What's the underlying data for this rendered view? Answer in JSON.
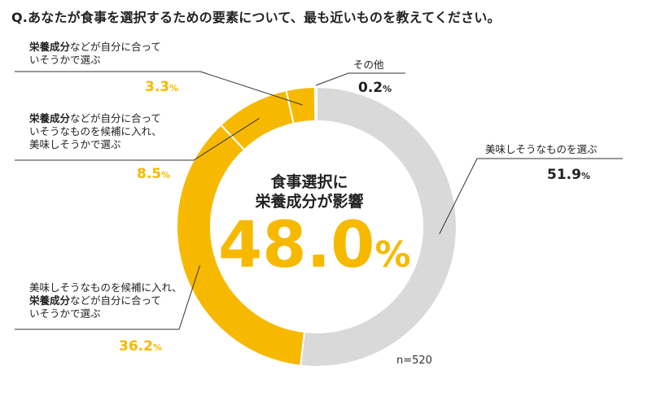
{
  "title": "Q.あなたが食事を選択するための要素について、最も近いものを教えてください。",
  "colors": {
    "gray": "#d9d9d9",
    "yellow": "#f7b900",
    "pct_yellow": "#f5b800"
  },
  "chart_data": {
    "type": "pie",
    "donut": true,
    "sample": "n=520",
    "center": {
      "line1": "食事選択に",
      "line2": "栄養成分が影響",
      "value": "48.0",
      "unit": "%"
    },
    "slices": [
      {
        "id": "tasty",
        "value": 51.9,
        "value_text": "51.9",
        "unit": "%",
        "color": "#d9d9d9",
        "label_lines": [
          "美味しそうなものを選ぶ"
        ]
      },
      {
        "id": "tasty-then-nutrition",
        "value": 36.2,
        "value_text": "36.2",
        "unit": "%",
        "color": "#f7b900",
        "label_lines": [
          "美味しそうなものを候補に入れ、",
          "栄養成分などが自分に合って",
          "いそうかで選ぶ"
        ],
        "bold_prefix_line": 1,
        "bold_prefix": "栄養成分",
        "bold_rest": "などが自分に合って"
      },
      {
        "id": "nutrition-then-tasty",
        "value": 8.5,
        "value_text": "8.5",
        "unit": "%",
        "color": "#f7b900",
        "label_lines": [
          "栄養成分などが自分に合って",
          "いそうなものを候補に入れ、",
          "美味しそうかで選ぶ"
        ],
        "bold_prefix": "栄養成分",
        "bold_rest": "などが自分に合って"
      },
      {
        "id": "nutrition-only",
        "value": 3.3,
        "value_text": "3.3",
        "unit": "%",
        "color": "#f7b900",
        "label_lines": [
          "栄養成分などが自分に合って",
          "いそうかで選ぶ"
        ],
        "bold_prefix": "栄養成分",
        "bold_rest": "などが自分に合って"
      },
      {
        "id": "other",
        "value": 0.2,
        "value_text": "0.2",
        "unit": "%",
        "color": "#f7b900",
        "label_lines": [
          "その他"
        ]
      }
    ]
  }
}
